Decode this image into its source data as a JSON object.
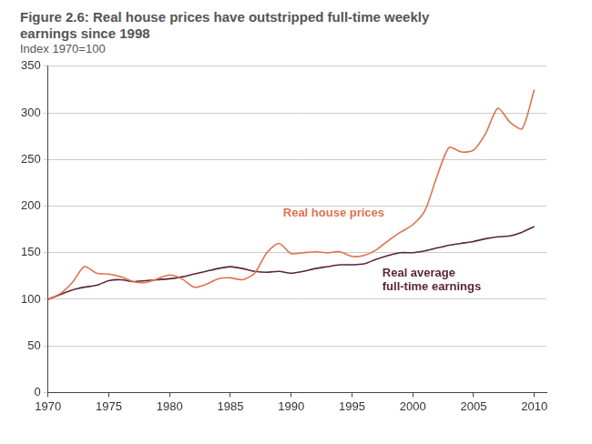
{
  "chart_data": {
    "type": "line",
    "title": "Figure 2.6: Real house prices have outstripped full-time weekly earnings since 1998",
    "subtitle": "Index 1970=100",
    "x": [
      1970,
      1971,
      1972,
      1973,
      1974,
      1975,
      1976,
      1977,
      1978,
      1979,
      1980,
      1981,
      1982,
      1983,
      1984,
      1985,
      1986,
      1987,
      1988,
      1989,
      1990,
      1991,
      1992,
      1993,
      1994,
      1995,
      1996,
      1997,
      1998,
      1999,
      2000,
      2001,
      2002,
      2003,
      2004,
      2005,
      2006,
      2007,
      2008,
      2009,
      2010
    ],
    "series": [
      {
        "name": "Real house prices",
        "color": "#e0704c",
        "values": [
          100,
          106,
          118,
          135,
          128,
          127,
          124,
          119,
          118,
          122,
          126,
          122,
          113,
          116,
          122,
          123,
          121,
          128,
          150,
          160,
          149,
          150,
          151,
          150,
          151,
          146,
          147,
          153,
          163,
          172,
          180,
          195,
          232,
          263,
          258,
          260,
          278,
          305,
          290,
          283,
          325
        ]
      },
      {
        "name": "Real average full-time earnings",
        "color": "#5b2636",
        "values": [
          100,
          105,
          110,
          113,
          115,
          120,
          121,
          119,
          120,
          121,
          122,
          124,
          127,
          130,
          133,
          135,
          133,
          130,
          129,
          130,
          128,
          130,
          133,
          135,
          137,
          137,
          138,
          143,
          147,
          150,
          150,
          152,
          155,
          158,
          160,
          162,
          165,
          167,
          168,
          172,
          178
        ]
      }
    ],
    "xlim": [
      1970,
      2011
    ],
    "xticks": [
      1970,
      1975,
      1980,
      1985,
      1990,
      1995,
      2000,
      2005,
      2010
    ],
    "ylim": [
      0,
      350
    ],
    "yticks": [
      0,
      50,
      100,
      150,
      200,
      250,
      300,
      350
    ],
    "grid": "y"
  }
}
